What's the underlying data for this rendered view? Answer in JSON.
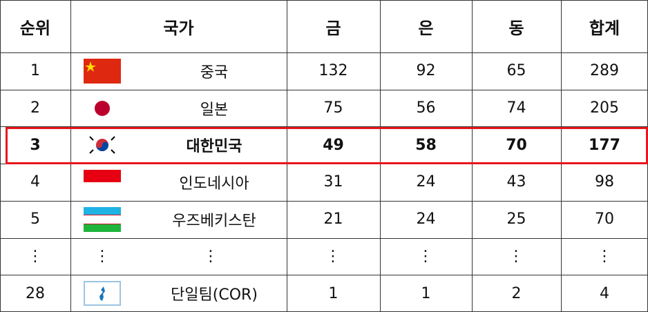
{
  "header": {
    "rank": "순위",
    "country": "국가",
    "gold": "금",
    "silver": "은",
    "bronze": "동",
    "total": "합계"
  },
  "rows": [
    {
      "rank": 1,
      "country": "중국",
      "gold": 132,
      "silver": 92,
      "bronze": 65,
      "total": 289
    },
    {
      "rank": 2,
      "country": "일본",
      "gold": 75,
      "silver": 56,
      "bronze": 74,
      "total": 205
    },
    {
      "rank": 3,
      "country": "대한민국",
      "gold": 49,
      "silver": 58,
      "bronze": 70,
      "total": 177
    },
    {
      "rank": 4,
      "country": "인도네시아",
      "gold": 31,
      "silver": 24,
      "bronze": 43,
      "total": 98
    },
    {
      "rank": 5,
      "country": "우즈베키스탄",
      "gold": 21,
      "silver": 24,
      "bronze": 25,
      "total": 70
    }
  ],
  "ellipsis": "⋮",
  "last_row": {
    "rank": 28,
    "country": "단일팀(COR)",
    "gold": 1,
    "silver": 1,
    "bronze": 2,
    "total": 4
  },
  "highlight_row": 2
}
